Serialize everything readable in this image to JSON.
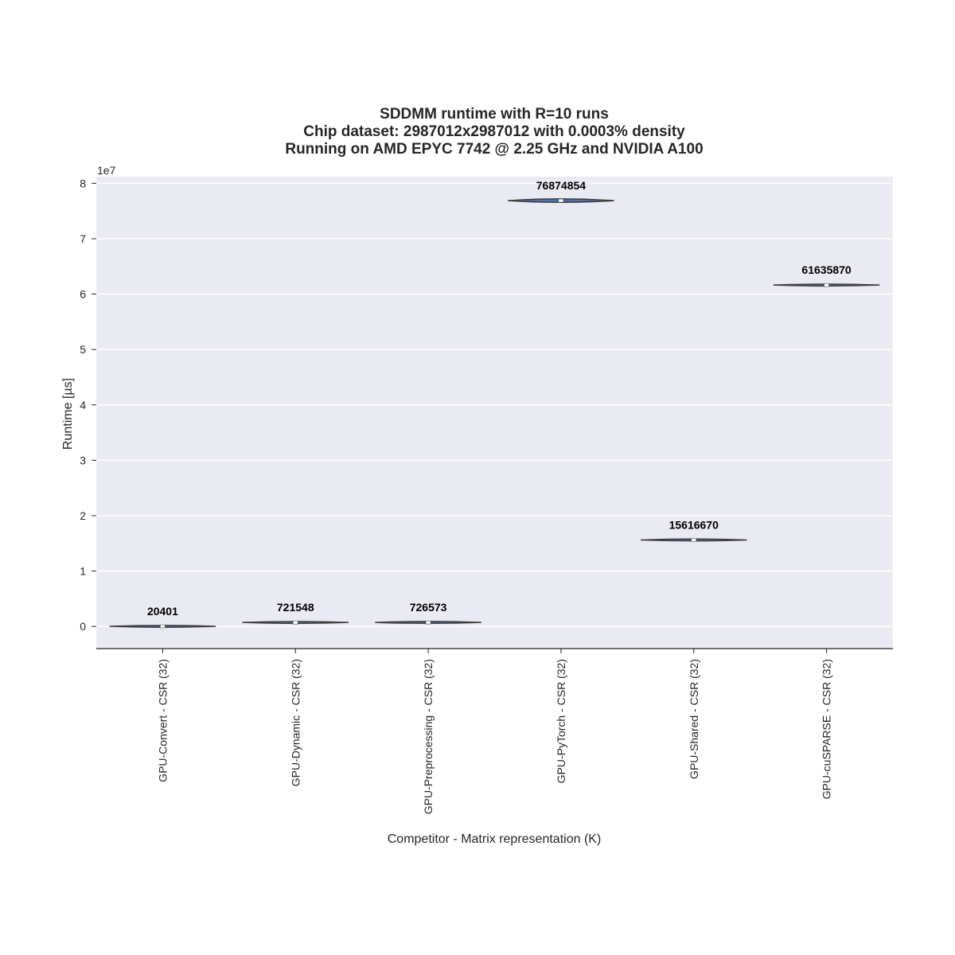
{
  "chart_data": {
    "type": "violin",
    "title_lines": [
      "SDDMM runtime with R=10 runs",
      "Chip dataset: 2987012x2987012 with 0.0003% density",
      "Running on AMD EPYC 7742 @ 2.25 GHz and NVIDIA A100"
    ],
    "xlabel": "Competitor - Matrix representation (K)",
    "ylabel": "Runtime [µs]",
    "y_offset_label": "1e7",
    "y_scale": 10000000,
    "ylim": [
      -4000000,
      81200000
    ],
    "y_ticks": [
      0,
      10000000,
      20000000,
      30000000,
      40000000,
      50000000,
      60000000,
      70000000,
      80000000
    ],
    "y_tick_labels": [
      "0",
      "1",
      "2",
      "3",
      "4",
      "5",
      "6",
      "7",
      "8"
    ],
    "categories": [
      "GPU-Convert - CSR (32)",
      "GPU-Dynamic - CSR (32)",
      "GPU-Preprocessing - CSR (32)",
      "GPU-PyTorch - CSR (32)",
      "GPU-Shared - CSR (32)",
      "GPU-cuSPARSE - CSR (32)"
    ],
    "values": [
      20401,
      721548,
      726573,
      76874854,
      15616670,
      61635870
    ],
    "value_labels": [
      "20401",
      "721548",
      "726573",
      "76874854",
      "15616670",
      "61635870"
    ],
    "grid": true,
    "legend": "none"
  },
  "colors": {
    "plot_background": "#eaeaf2",
    "grid": "#ffffff",
    "violin_fill": "#4c72b0",
    "violin_edge": "#3f3f3f",
    "text": "#262626"
  }
}
